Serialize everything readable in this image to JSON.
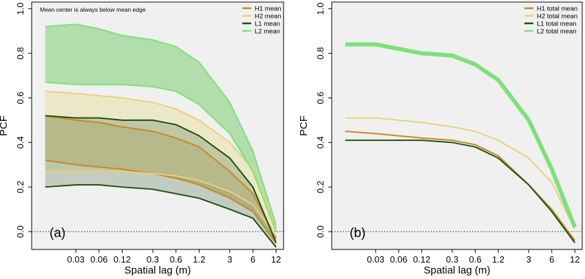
{
  "chart_data": [
    {
      "type": "area",
      "panel_label": "(a)",
      "annotation": "Mean center is always below mean edge",
      "xlabel": "Spatial lag (m)",
      "ylabel": "PCF",
      "xscale": "log",
      "xlim": [
        0.008,
        15
      ],
      "ylim": [
        -0.08,
        1.03
      ],
      "xticks": [
        "0.03",
        "0.06",
        "0.12",
        "0.3",
        "0.6",
        "1.2",
        "3",
        "6",
        "12"
      ],
      "xtick_values": [
        0.03,
        0.06,
        0.12,
        0.3,
        0.6,
        1.2,
        3,
        6,
        12
      ],
      "yticks": [
        "0.0",
        "0.2",
        "0.4",
        "0.6",
        "0.8",
        "1.0"
      ],
      "ytick_values": [
        0.0,
        0.2,
        0.4,
        0.6,
        0.8,
        1.0
      ],
      "reference_line": 0.0,
      "legend_position": "top-right",
      "series": [
        {
          "name": "H1 mean",
          "color": "#c48a22",
          "fill": "#b08a1c",
          "fill_opacity": 0.45,
          "x": [
            0.012,
            0.03,
            0.06,
            0.12,
            0.3,
            0.6,
            1.2,
            3,
            6,
            12
          ],
          "upper": [
            0.52,
            0.5,
            0.49,
            0.47,
            0.45,
            0.42,
            0.38,
            0.27,
            0.17,
            -0.03
          ],
          "lower": [
            0.32,
            0.3,
            0.29,
            0.28,
            0.26,
            0.24,
            0.21,
            0.15,
            0.09,
            -0.05
          ]
        },
        {
          "name": "H2 mean",
          "color": "#e8d27a",
          "fill": "#e7e2a8",
          "fill_opacity": 0.55,
          "x": [
            0.012,
            0.03,
            0.06,
            0.12,
            0.3,
            0.6,
            1.2,
            3,
            6,
            12
          ],
          "upper": [
            0.63,
            0.62,
            0.61,
            0.6,
            0.58,
            0.55,
            0.5,
            0.4,
            0.28,
            0.02
          ],
          "lower": [
            0.27,
            0.27,
            0.27,
            0.27,
            0.26,
            0.25,
            0.23,
            0.18,
            0.12,
            -0.02
          ]
        },
        {
          "name": "L1 mean",
          "color": "#1f4f0e",
          "fill": "#6d8a66",
          "fill_opacity": 0.35,
          "x": [
            0.012,
            0.03,
            0.06,
            0.12,
            0.3,
            0.6,
            1.2,
            3,
            6,
            12
          ],
          "upper": [
            0.52,
            0.51,
            0.51,
            0.5,
            0.5,
            0.48,
            0.43,
            0.33,
            0.2,
            -0.05
          ],
          "lower": [
            0.2,
            0.21,
            0.21,
            0.2,
            0.19,
            0.17,
            0.15,
            0.1,
            0.06,
            -0.07
          ]
        },
        {
          "name": "L2 mean",
          "color": "#7fe07a",
          "fill": "#7fcf72",
          "fill_opacity": 0.55,
          "x": [
            0.012,
            0.03,
            0.06,
            0.12,
            0.3,
            0.6,
            1.2,
            3,
            6,
            12
          ],
          "upper": [
            0.92,
            0.93,
            0.91,
            0.88,
            0.86,
            0.83,
            0.76,
            0.58,
            0.36,
            0.03
          ],
          "lower": [
            0.67,
            0.66,
            0.66,
            0.66,
            0.65,
            0.63,
            0.57,
            0.44,
            0.27,
            0.0
          ]
        }
      ]
    },
    {
      "type": "line",
      "panel_label": "(b)",
      "xlabel": "Spatial lag (m)",
      "ylabel": "PCF",
      "xscale": "log",
      "xlim": [
        0.008,
        15
      ],
      "ylim": [
        -0.08,
        1.03
      ],
      "xticks": [
        "0.03",
        "0.06",
        "0.12",
        "0.3",
        "0.6",
        "1.2",
        "3",
        "6",
        "12"
      ],
      "xtick_values": [
        0.03,
        0.06,
        0.12,
        0.3,
        0.6,
        1.2,
        3,
        6,
        12
      ],
      "yticks": [
        "0.0",
        "0.2",
        "0.4",
        "0.6",
        "0.8",
        "1.0"
      ],
      "ytick_values": [
        0.0,
        0.2,
        0.4,
        0.6,
        0.8,
        1.0
      ],
      "reference_line": 0.0,
      "legend_position": "top-right",
      "series": [
        {
          "name": "H1 total mean",
          "color": "#c48a22",
          "width": 2,
          "x": [
            0.012,
            0.03,
            0.06,
            0.12,
            0.3,
            0.6,
            1.2,
            3,
            6,
            12
          ],
          "values": [
            0.45,
            0.44,
            0.43,
            0.42,
            0.41,
            0.39,
            0.34,
            0.21,
            0.1,
            -0.04
          ]
        },
        {
          "name": "H2 total mean",
          "color": "#e8d27a",
          "width": 2,
          "x": [
            0.012,
            0.03,
            0.06,
            0.12,
            0.3,
            0.6,
            1.2,
            3,
            6,
            12
          ],
          "values": [
            0.51,
            0.51,
            0.5,
            0.49,
            0.47,
            0.45,
            0.41,
            0.33,
            0.22,
            0.01
          ]
        },
        {
          "name": "L1 total mean",
          "color": "#1f4f0e",
          "width": 2,
          "x": [
            0.012,
            0.03,
            0.06,
            0.12,
            0.3,
            0.6,
            1.2,
            3,
            6,
            12
          ],
          "values": [
            0.41,
            0.41,
            0.41,
            0.41,
            0.4,
            0.38,
            0.33,
            0.21,
            0.09,
            -0.05
          ]
        },
        {
          "name": "L2 total mean",
          "color": "#7fe07a",
          "width": 6,
          "x": [
            0.012,
            0.03,
            0.06,
            0.12,
            0.3,
            0.6,
            1.2,
            3,
            6,
            12
          ],
          "values": [
            0.84,
            0.84,
            0.82,
            0.8,
            0.79,
            0.75,
            0.68,
            0.5,
            0.28,
            0.02
          ]
        }
      ]
    }
  ]
}
